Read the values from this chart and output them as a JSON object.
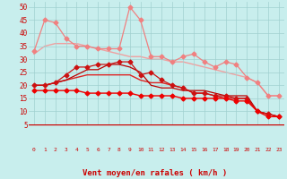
{
  "xlabel": "Vent moyen/en rafales ( km/h )",
  "xlim": [
    -0.5,
    23.5
  ],
  "ylim": [
    5,
    52
  ],
  "yticks": [
    5,
    10,
    15,
    20,
    25,
    30,
    35,
    40,
    45,
    50
  ],
  "xticks": [
    0,
    1,
    2,
    3,
    4,
    5,
    6,
    7,
    8,
    9,
    10,
    11,
    12,
    13,
    14,
    15,
    16,
    17,
    18,
    19,
    20,
    21,
    22,
    23
  ],
  "bg_color": "#c8eeed",
  "grid_color": "#a0d0d0",
  "series": [
    {
      "y": [
        32,
        35,
        36,
        36,
        36,
        35,
        34,
        33,
        32,
        31,
        31,
        30,
        30,
        29,
        29,
        28,
        27,
        26,
        25,
        24,
        23,
        21,
        16,
        16
      ],
      "color": "#f0a0a0",
      "marker": null,
      "linewidth": 1.0,
      "zorder": 1
    },
    {
      "y": [
        33,
        45,
        44,
        38,
        35,
        35,
        34,
        34,
        34,
        50,
        45,
        31,
        31,
        29,
        31,
        32,
        29,
        27,
        29,
        28,
        23,
        21,
        16,
        16
      ],
      "color": "#f08080",
      "marker": "D",
      "markersize": 2.5,
      "linewidth": 0.9,
      "zorder": 2
    },
    {
      "y": [
        20,
        20,
        21,
        24,
        27,
        27,
        28,
        28,
        29,
        29,
        24,
        25,
        22,
        20,
        19,
        17,
        17,
        16,
        16,
        15,
        15,
        10,
        9,
        8
      ],
      "color": "#cc1111",
      "marker": "D",
      "markersize": 2.5,
      "linewidth": 0.9,
      "zorder": 3
    },
    {
      "y": [
        20,
        20,
        21,
        22,
        23,
        24,
        24,
        24,
        24,
        24,
        22,
        21,
        21,
        20,
        19,
        17,
        17,
        16,
        15,
        15,
        15,
        10,
        9,
        8
      ],
      "color": "#dd2222",
      "marker": null,
      "linewidth": 1.0,
      "zorder": 2
    },
    {
      "y": [
        18,
        18,
        18,
        18,
        18,
        17,
        17,
        17,
        17,
        17,
        16,
        16,
        16,
        16,
        15,
        15,
        15,
        15,
        15,
        14,
        14,
        10,
        8,
        8
      ],
      "color": "#ee0000",
      "marker": "D",
      "markersize": 2.5,
      "linewidth": 1.0,
      "zorder": 4
    },
    {
      "y": [
        20,
        20,
        21,
        22,
        24,
        26,
        26,
        28,
        28,
        27,
        25,
        20,
        19,
        19,
        18,
        18,
        18,
        17,
        16,
        16,
        16,
        10,
        9,
        8
      ],
      "color": "#bb0000",
      "marker": null,
      "linewidth": 0.9,
      "zorder": 2
    }
  ],
  "arrow_color": "#cc2222",
  "arrow_line_color": "#cc0000",
  "n_arrows": 24,
  "up_arrows": [
    0,
    1,
    2,
    3,
    4,
    5,
    6,
    7,
    8,
    9,
    10
  ],
  "down_arrows": [
    11,
    12,
    13,
    14,
    15,
    16,
    17,
    18,
    19,
    20,
    21,
    22,
    23
  ]
}
